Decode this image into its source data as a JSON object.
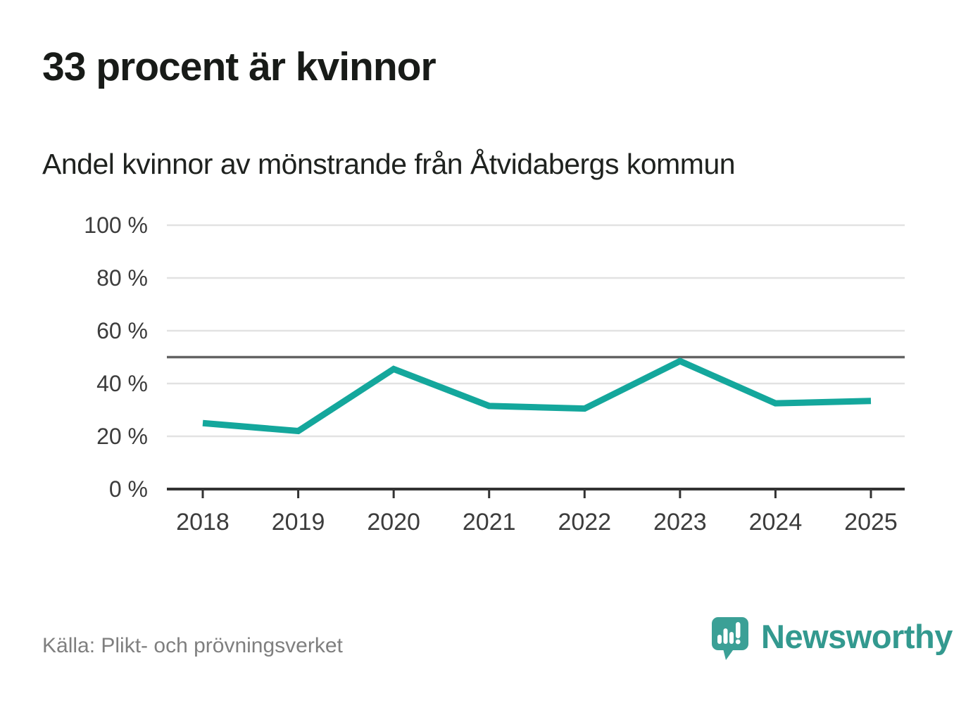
{
  "header": {
    "title": "33 procent är kvinnor",
    "subtitle": "Andel kvinnor av mönstrande från Åtvidabergs kommun"
  },
  "footer": {
    "source": "Källa: Plikt- och prövningsverket",
    "brand": "Newsworthy"
  },
  "colors": {
    "line": "#14a79c",
    "grid": "#e2e2e2",
    "reference_line": "#636363",
    "axis": "#333333",
    "tick_text": "#3c3c3c",
    "brand_teal": "#3ba096",
    "title_text": "#181b18",
    "source_text": "#7f7f7f"
  },
  "chart_data": {
    "type": "line",
    "title": "33 procent är kvinnor",
    "subtitle": "Andel kvinnor av mönstrande från Åtvidabergs kommun",
    "categories": [
      "2018",
      "2019",
      "2020",
      "2021",
      "2022",
      "2023",
      "2024",
      "2025"
    ],
    "series": [
      {
        "name": "Andel kvinnor av mönstrande, Åtvidabergs kommun",
        "values": [
          25,
          22,
          45.5,
          31.5,
          30.5,
          48.5,
          32.5,
          33.4
        ]
      }
    ],
    "unit": "%",
    "xlabel": "",
    "ylabel": "",
    "ylim": [
      0,
      100
    ],
    "yticks": [
      0,
      20,
      40,
      60,
      80,
      100
    ],
    "ytick_labels": [
      "0 %",
      "20 %",
      "40 %",
      "60 %",
      "80 %",
      "100 %"
    ],
    "reference_line": 50,
    "grid": "horizontal",
    "legend": "none"
  }
}
